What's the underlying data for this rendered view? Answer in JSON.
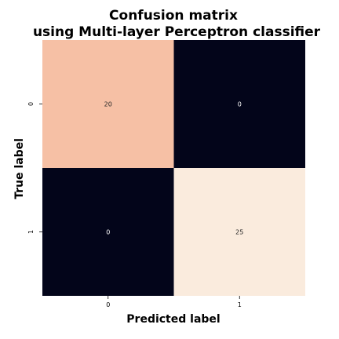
{
  "chart_data": {
    "type": "heatmap",
    "title": [
      "Confusion matrix",
      "using Multi-layer Perceptron classifier"
    ],
    "xlabel": "Predicted label",
    "ylabel": "True label",
    "x_categories": [
      "0",
      "1"
    ],
    "y_categories": [
      "0",
      "1"
    ],
    "values": [
      [
        20,
        0
      ],
      [
        0,
        25
      ]
    ],
    "colorbar": false,
    "colors": {
      "low": "#03051a",
      "mid": "#f3a07b",
      "high": "#faebdd",
      "label_on_light": "#262626",
      "label_on_dark": "#ffffff"
    }
  }
}
